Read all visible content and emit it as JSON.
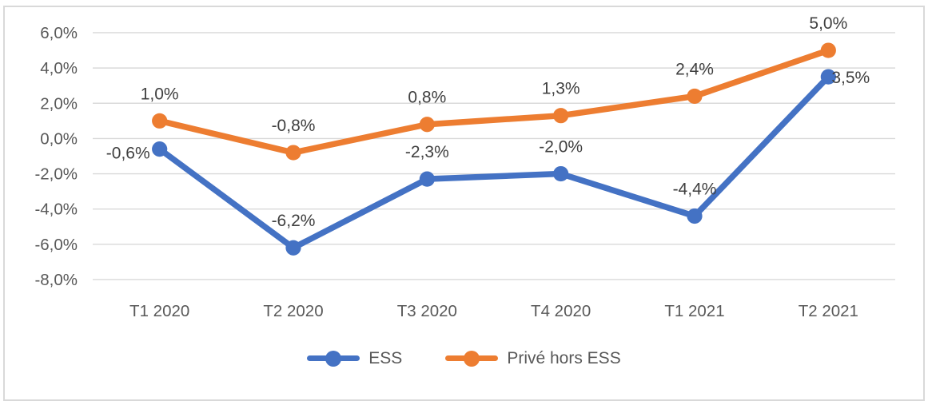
{
  "chart": {
    "background": "#FFFFFF",
    "border_color": "#D9D9D9",
    "grid_color": "#D9D9D9",
    "axis_label_color": "#595959",
    "data_label_color": "#404040"
  },
  "chart_data": {
    "type": "line",
    "title": "",
    "categories": [
      "T1 2020",
      "T2 2020",
      "T3 2020",
      "T4 2020",
      "T1 2021",
      "T2 2021"
    ],
    "series": [
      {
        "name": "ESS",
        "color": "#4472C4",
        "values": [
          -0.6,
          -6.2,
          -2.3,
          -2.0,
          -4.4,
          3.5
        ],
        "data_labels": [
          "-0,6%",
          "-6,2%",
          "-2,3%",
          "-2,0%",
          "-4,4%",
          "3,5%"
        ],
        "label_positions": [
          "left",
          "above",
          "above",
          "above",
          "above",
          "right"
        ]
      },
      {
        "name": "Privé hors ESS",
        "color": "#ED7D31",
        "values": [
          1.0,
          -0.8,
          0.8,
          1.3,
          2.4,
          5.0
        ],
        "data_labels": [
          "1,0%",
          "-0,8%",
          "0,8%",
          "1,3%",
          "2,4%",
          "5,0%"
        ],
        "label_positions": [
          "above",
          "above",
          "above",
          "above",
          "above",
          "above"
        ]
      }
    ],
    "y_axis": {
      "min": -8,
      "max": 6,
      "tick_step": 2,
      "ticks": [
        {
          "value": 6,
          "label": "6,0%"
        },
        {
          "value": 4,
          "label": "4,0%"
        },
        {
          "value": 2,
          "label": "2,0%"
        },
        {
          "value": 0,
          "label": "0,0%"
        },
        {
          "value": -2,
          "label": "-2,0%"
        },
        {
          "value": -4,
          "label": "-4,0%"
        },
        {
          "value": -6,
          "label": "-6,0%"
        },
        {
          "value": -8,
          "label": "-8,0%"
        }
      ]
    },
    "grid": "horizontal",
    "legend": {
      "position": "bottom",
      "items": [
        "ESS",
        "Privé hors ESS"
      ]
    }
  }
}
